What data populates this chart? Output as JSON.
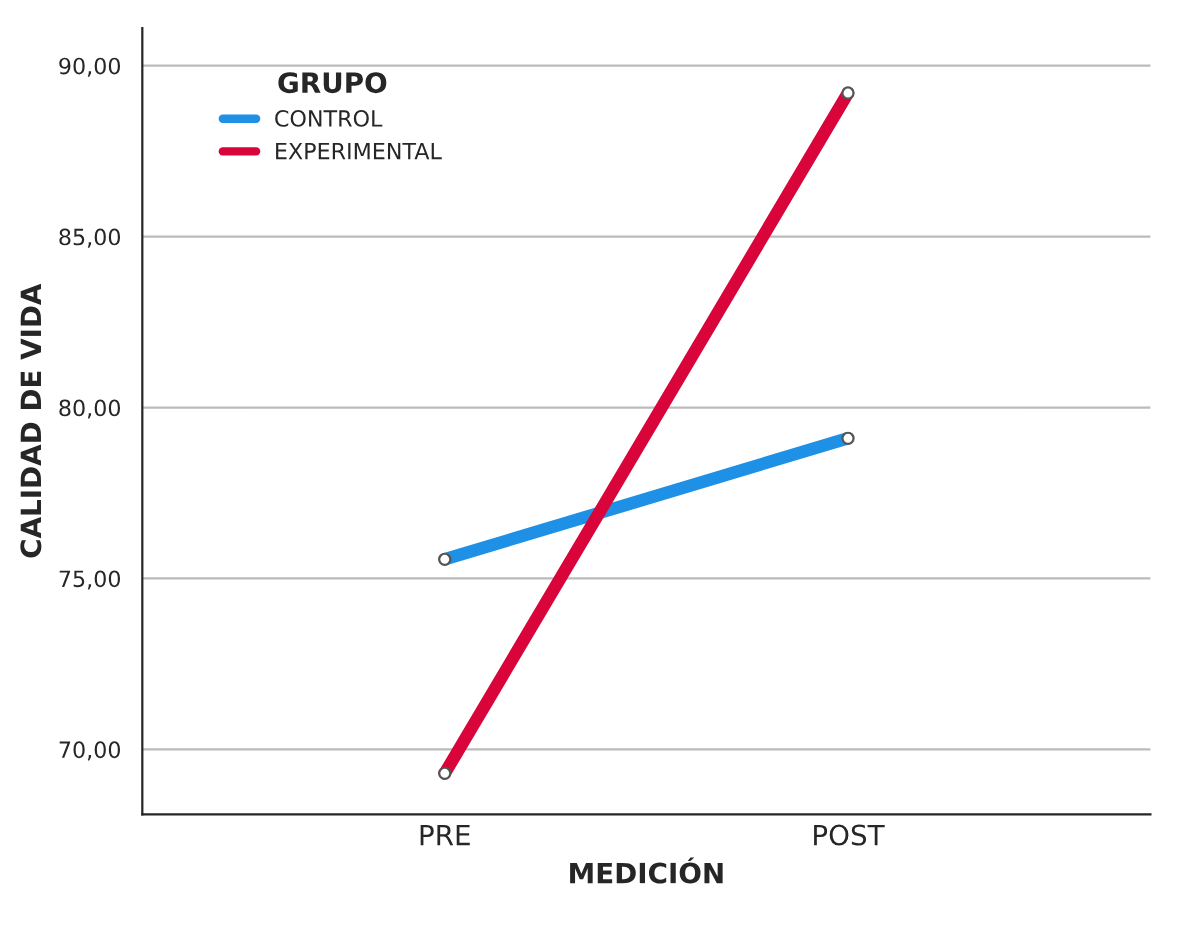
{
  "chart_data": {
    "type": "line",
    "xlabel": "MEDICIÓN",
    "ylabel": "CALIDAD DE VIDA",
    "legend_title": "GRUPO",
    "categories": [
      "PRE",
      "POST"
    ],
    "series": [
      {
        "name": "CONTROL",
        "color": "#1e90e6",
        "values": [
          75.56,
          79.1
        ]
      },
      {
        "name": "EXPERIMENTAL",
        "color": "#d9043a",
        "values": [
          69.3,
          89.2
        ]
      }
    ],
    "ylim": [
      68.1,
      91.1
    ],
    "yticks": [
      {
        "value": 70,
        "label": "70,00"
      },
      {
        "value": 75,
        "label": "75,00"
      },
      {
        "value": 80,
        "label": "80,00"
      },
      {
        "value": 85,
        "label": "85,00"
      },
      {
        "value": 90,
        "label": "90,00"
      }
    ],
    "grid": "y",
    "legend": "top left",
    "marker": "circle",
    "line_style": "solid"
  }
}
